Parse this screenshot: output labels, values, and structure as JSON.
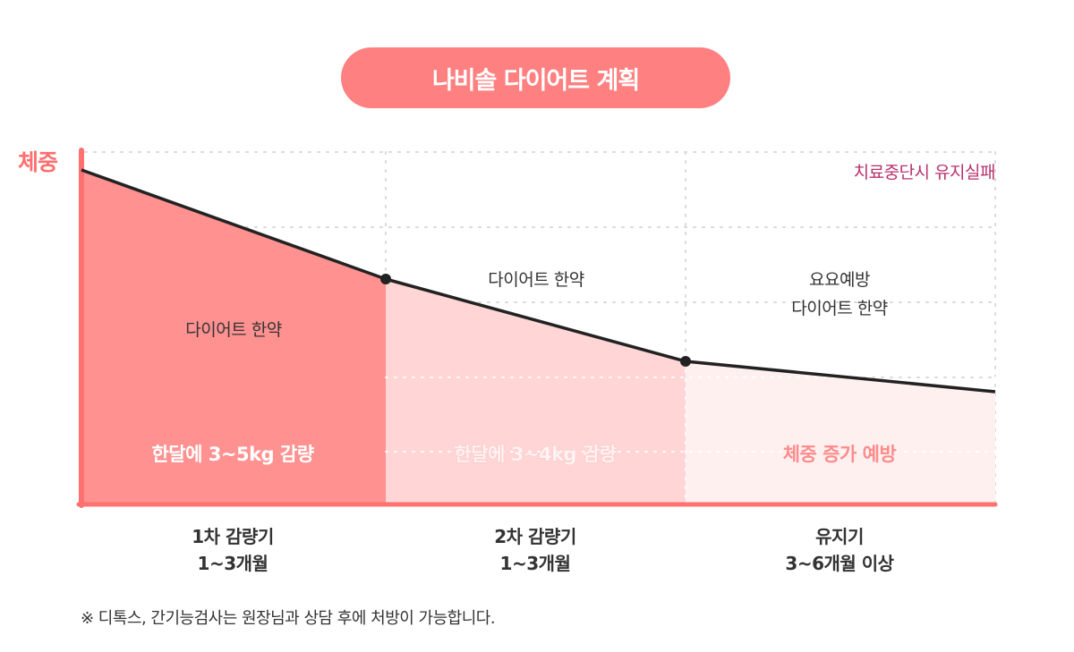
{
  "title": "나비솔 다이어트 계획",
  "y_label": "체중",
  "fail_note": "치료중단시 유지실패",
  "colors": {
    "title_bg": "#ff8080",
    "phase1_fill": "#ff9191",
    "phase2_fill": "#ffd5d5",
    "phase3_fill": "#fff0f0",
    "axis": "#ff7070",
    "line": "#222222",
    "fail_note": "#b8306e"
  },
  "phases": [
    {
      "medicine": "다이어트 한약",
      "goal": "한달에 3~5kg 감량",
      "name": "1차 감량기",
      "duration": "1~3개월"
    },
    {
      "medicine": "다이어트 한약",
      "goal": "한달에 3~4kg 감량",
      "name": "2차 감량기",
      "duration": "1~3개월"
    },
    {
      "medicine_line1": "요요예방",
      "medicine_line2": "다이어트 한약",
      "goal": "체중 증가 예방",
      "name": "유지기",
      "duration": "3~6개월 이상"
    }
  ],
  "footnote": "※ 디톡스, 간기능검사는 원장님과 상담 후에 처방이 가능합니다."
}
